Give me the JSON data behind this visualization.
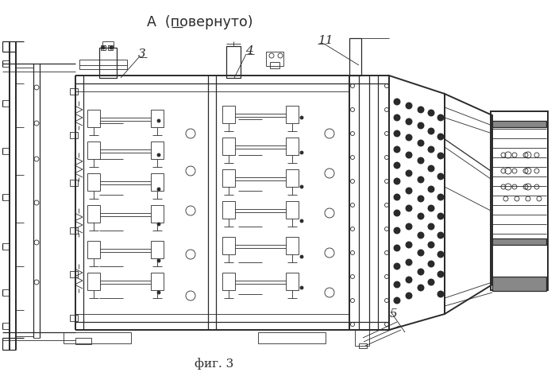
{
  "title": "А  (повернуто)",
  "fig_label": "фиг. 3",
  "bg_color": "#ffffff",
  "line_color": "#2a2a2a",
  "lw_thin": 0.6,
  "lw_med": 0.9,
  "lw_thick": 1.4
}
